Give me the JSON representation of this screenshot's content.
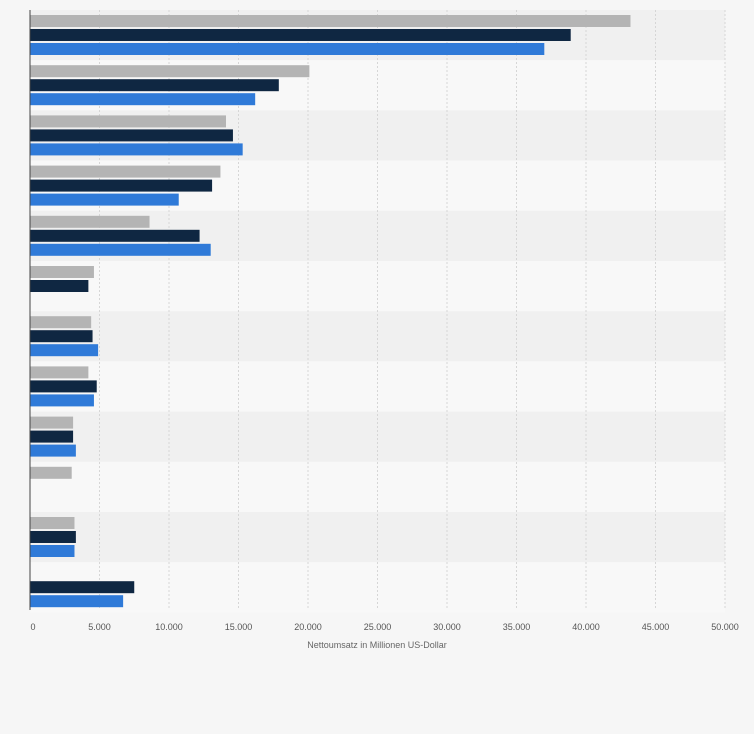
{
  "chart_data": {
    "type": "bar",
    "orientation": "horizontal",
    "xlabel": "Nettoumsatz in Millionen US-Dollar",
    "ylabel": "",
    "xlim": [
      0,
      50000
    ],
    "x_ticks": [
      "0",
      "5.000",
      "10.000",
      "15.000",
      "20.000",
      "25.000",
      "30.000",
      "35.000",
      "40.000",
      "45.000",
      "50.000"
    ],
    "tick_values": [
      0,
      5000,
      10000,
      15000,
      20000,
      25000,
      30000,
      35000,
      40000,
      45000,
      50000
    ],
    "grid": true,
    "legend": "none",
    "categories": [
      "",
      "",
      "",
      "",
      "",
      "",
      "",
      "",
      "",
      "",
      "",
      ""
    ],
    "series": [
      {
        "color": "#b4b4b4",
        "values": [
          43200,
          20100,
          14100,
          13700,
          8600,
          4600,
          4400,
          4200,
          3100,
          3000,
          3200,
          null
        ]
      },
      {
        "color": "#0f2742",
        "values": [
          38900,
          17900,
          14600,
          13100,
          12200,
          4200,
          4500,
          4800,
          3100,
          null,
          3300,
          7500
        ]
      },
      {
        "color": "#2f7ad8",
        "values": [
          37000,
          16200,
          15300,
          10700,
          13000,
          null,
          4900,
          4600,
          3300,
          null,
          3200,
          6700
        ]
      }
    ]
  }
}
